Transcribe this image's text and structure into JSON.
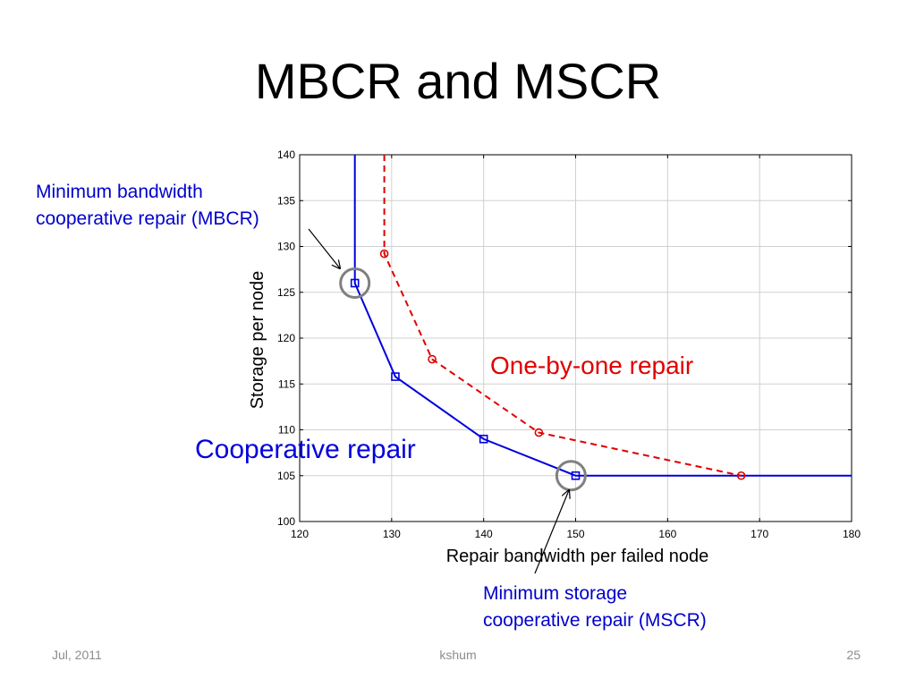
{
  "slide": {
    "title": "MBCR and MSCR",
    "footer_date": "Jul, 2011",
    "footer_author": "kshum",
    "footer_page": "25"
  },
  "annotations": {
    "mbcr_line1": "Minimum bandwidth",
    "mbcr_line2": "cooperative repair (MBCR)",
    "mscr_line1": "Minimum storage",
    "mscr_line2": "cooperative repair (MSCR)",
    "one_by_one": "One-by-one repair",
    "cooperative": "Cooperative repair"
  },
  "colors": {
    "cooperative": "#0000dd",
    "one_by_one": "#e00000",
    "highlight_circle": "#808080",
    "grid": "#d0d0d0"
  },
  "chart_data": {
    "type": "line",
    "title": "",
    "xlabel": "Repair bandwidth per failed node",
    "ylabel": "Storage per node",
    "xlim": [
      120,
      180
    ],
    "ylim": [
      100,
      140
    ],
    "xticks": [
      120,
      130,
      140,
      150,
      160,
      170,
      180
    ],
    "yticks": [
      100,
      105,
      110,
      115,
      120,
      125,
      130,
      135,
      140
    ],
    "grid": true,
    "series": [
      {
        "key": "cooperative",
        "style": "solid",
        "marker": "square",
        "color": "#0000dd",
        "points": [
          [
            126,
            140
          ],
          [
            126,
            126
          ],
          [
            130.4,
            115.8
          ],
          [
            140,
            109
          ],
          [
            150,
            105
          ],
          [
            180,
            105
          ]
        ],
        "marked": [
          1,
          2,
          3,
          4
        ]
      },
      {
        "key": "one_by_one",
        "style": "dashed",
        "marker": "circle",
        "color": "#e00000",
        "points": [
          [
            129.2,
            140
          ],
          [
            129.2,
            129.2
          ],
          [
            134.4,
            117.7
          ],
          [
            146,
            109.7
          ],
          [
            168,
            105
          ]
        ],
        "marked": [
          1,
          2,
          3,
          4
        ]
      }
    ],
    "highlights": [
      [
        126,
        126
      ],
      [
        149.5,
        105
      ]
    ]
  }
}
